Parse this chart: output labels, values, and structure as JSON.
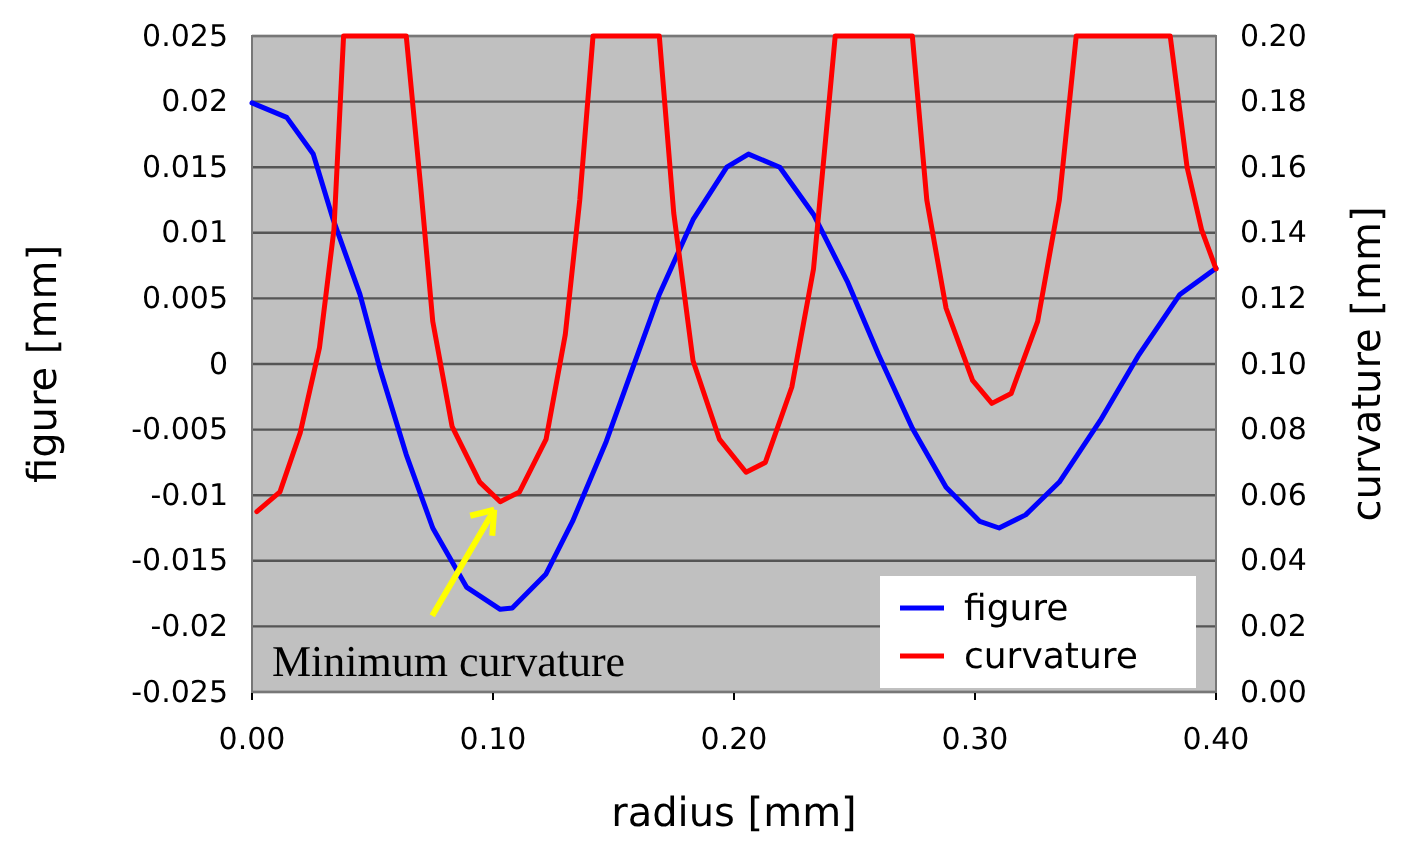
{
  "chart_data": {
    "type": "line",
    "xlabel": "radius [mm]",
    "ylabel": "figure [mm]",
    "y2label": "curvature [mm]",
    "xlim": [
      0,
      0.4
    ],
    "xticks": [
      {
        "value": 0,
        "label": "0.00"
      },
      {
        "value": 0.1,
        "label": "0.10"
      },
      {
        "value": 0.2,
        "label": "0.20"
      },
      {
        "value": 0.3,
        "label": "0.30"
      },
      {
        "value": 0.4,
        "label": "0.40"
      }
    ],
    "ylim": [
      -0.025,
      0.025
    ],
    "yticks": [
      -0.025,
      -0.02,
      -0.015,
      -0.01,
      -0.005,
      0,
      0.005,
      0.01,
      0.015,
      0.02,
      0.025
    ],
    "y2lim": [
      0,
      0.2
    ],
    "y2ticks": [
      {
        "value": 0,
        "label": "0.00"
      },
      {
        "value": 0.02,
        "label": "0.02"
      },
      {
        "value": 0.04,
        "label": "0.04"
      },
      {
        "value": 0.06,
        "label": "0.06"
      },
      {
        "value": 0.08,
        "label": "0.08"
      },
      {
        "value": 0.1,
        "label": "0.10"
      },
      {
        "value": 0.12,
        "label": "0.12"
      },
      {
        "value": 0.14,
        "label": "0.14"
      },
      {
        "value": 0.16,
        "label": "0.16"
      },
      {
        "value": 0.18,
        "label": "0.18"
      },
      {
        "value": 0.2,
        "label": "0.20"
      }
    ],
    "grid": "y",
    "legend": "bottom right",
    "marker": "none",
    "line_style": "solid",
    "annotations": [
      {
        "text": "Minimum curvature",
        "x": 0.103,
        "y": -0.0105
      }
    ],
    "series": [
      {
        "name": "figure",
        "color": "#0000ff",
        "x": [
          0,
          0.0144,
          0.0254,
          0.0337,
          0.0448,
          0.053,
          0.064,
          0.075,
          0.089,
          0.103,
          0.108,
          0.122,
          0.133,
          0.147,
          0.158,
          0.169,
          0.183,
          0.197,
          0.206,
          0.219,
          0.233,
          0.247,
          0.26,
          0.274,
          0.288,
          0.302,
          0.31,
          0.321,
          0.335,
          0.352,
          0.368,
          0.385,
          0.4
        ],
        "values": [
          0.0199,
          0.0188,
          0.016,
          0.011,
          0.0053,
          -0.0003,
          -0.0069,
          -0.0125,
          -0.017,
          -0.0187,
          -0.0186,
          -0.016,
          -0.012,
          -0.0059,
          -0.0003,
          0.0053,
          0.011,
          0.015,
          0.016,
          0.015,
          0.0114,
          0.0063,
          0.0007,
          -0.0049,
          -0.0094,
          -0.012,
          -0.0125,
          -0.0115,
          -0.009,
          -0.0043,
          0.0007,
          0.0053,
          0.0073
        ]
      },
      {
        "name": "curvature",
        "color": "#ff0000",
        "axis": "y2",
        "x": [
          0.002,
          0.0116,
          0.02,
          0.028,
          0.034,
          0.038,
          0.064,
          0.07,
          0.075,
          0.083,
          0.0945,
          0.103,
          0.111,
          0.122,
          0.13,
          0.136,
          0.1415,
          0.169,
          0.175,
          0.183,
          0.194,
          0.205,
          0.213,
          0.224,
          0.233,
          0.242,
          0.274,
          0.28,
          0.288,
          0.299,
          0.307,
          0.315,
          0.326,
          0.335,
          0.342,
          0.381,
          0.388,
          0.394,
          0.4
        ],
        "values": [
          0.055,
          0.061,
          0.079,
          0.105,
          0.141,
          0.2,
          0.2,
          0.154,
          0.113,
          0.081,
          0.064,
          0.058,
          0.061,
          0.077,
          0.109,
          0.15,
          0.2,
          0.2,
          0.146,
          0.101,
          0.077,
          0.067,
          0.07,
          0.093,
          0.129,
          0.2,
          0.2,
          0.15,
          0.117,
          0.095,
          0.088,
          0.091,
          0.113,
          0.15,
          0.2,
          0.2,
          0.16,
          0.141,
          0.129
        ]
      }
    ]
  }
}
